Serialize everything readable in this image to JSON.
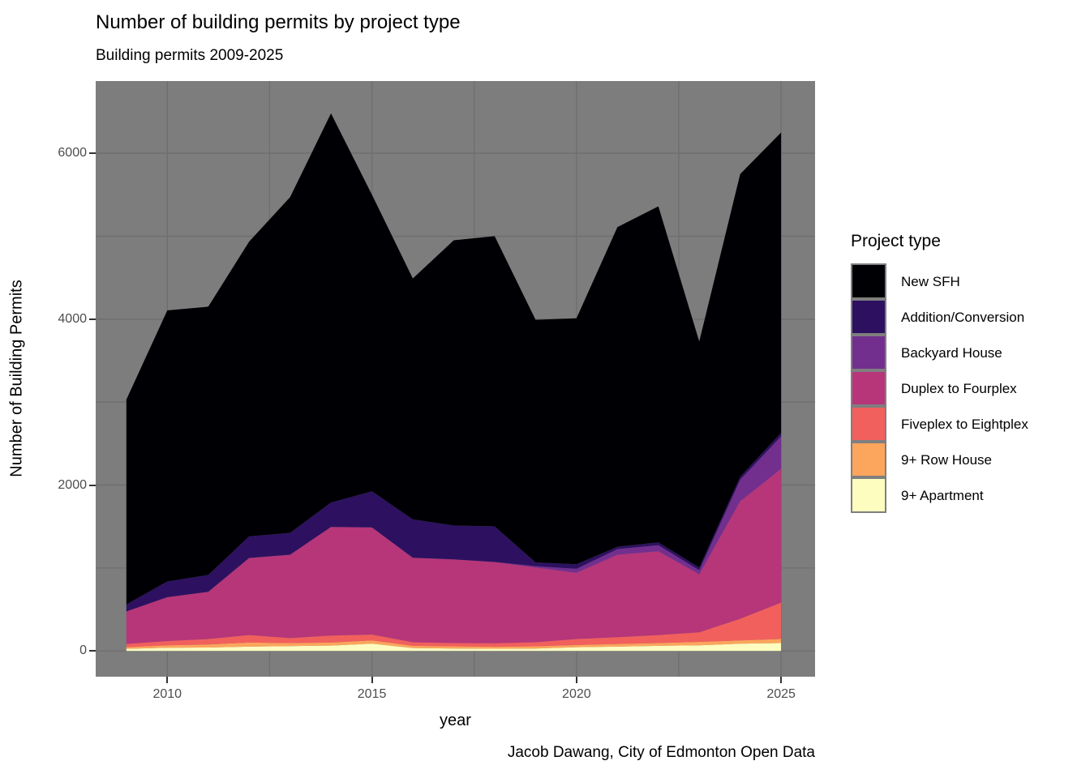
{
  "header": {
    "title": "Number of building permits by project type",
    "subtitle": "Building permits 2009-2025"
  },
  "caption": "Jacob Dawang, City of Edmonton Open Data",
  "legend": {
    "title": "Project type",
    "position": "right"
  },
  "axes": {
    "x_title": "year",
    "y_title": "Number of Building Permits",
    "x_ticks": [
      2010,
      2015,
      2020,
      2025
    ],
    "x_minor": [
      2012.5,
      2017.5,
      2022.5
    ],
    "y_ticks": [
      0,
      2000,
      4000,
      6000
    ],
    "y_minor": [
      1000,
      3000,
      5000
    ]
  },
  "colors": {
    "panel_background": "#7D7D7D",
    "gridline": "#6E6E6E",
    "tick_label": "#4D4D4D",
    "tick_mark": "#333333"
  },
  "chart_data": {
    "type": "area",
    "stacked": true,
    "title": "Number of building permits by project type",
    "subtitle": "Building permits 2009-2025",
    "xlabel": "year",
    "ylabel": "Number of Building Permits",
    "legend_title": "Project type",
    "legend_position": "right",
    "grid": true,
    "x": [
      2009,
      2010,
      2011,
      2012,
      2013,
      2014,
      2015,
      2016,
      2017,
      2018,
      2019,
      2020,
      2021,
      2022,
      2023,
      2024,
      2025
    ],
    "x_range": [
      2008.25,
      2025.83
    ],
    "y_range": [
      -310,
      6870
    ],
    "series": [
      {
        "name": "New SFH",
        "color": "#000004",
        "values": [
          2470,
          3267,
          3234,
          3554,
          4046,
          4691,
          3575,
          2904,
          3438,
          3498,
          2925,
          2964,
          3853,
          4050,
          2723,
          3650,
          3621
        ]
      },
      {
        "name": "Addition/Conversion",
        "color": "#2D1160",
        "values": [
          84,
          190,
          203,
          260,
          264,
          294,
          436,
          462,
          408,
          430,
          45,
          56,
          29,
          36,
          33,
          35,
          42
        ]
      },
      {
        "name": "Backyard House",
        "color": "#722F8E",
        "values": [
          0,
          0,
          0,
          0,
          0,
          0,
          0,
          0,
          0,
          0,
          15,
          49,
          68,
          72,
          49,
          260,
          391
        ]
      },
      {
        "name": "Duplex to Fourplex",
        "color": "#B63679",
        "values": [
          391,
          528,
          569,
          929,
          1005,
          1309,
          1291,
          1019,
          1009,
          979,
          902,
          797,
          994,
          1010,
          700,
          1417,
          1613
        ]
      },
      {
        "name": "Fiveplex to Eightplex",
        "color": "#F1605D",
        "values": [
          39,
          52,
          66,
          91,
          60,
          85,
          71,
          43,
          39,
          43,
          49,
          72,
          81,
          97,
          115,
          261,
          439
        ]
      },
      {
        "name": "9+ Row House",
        "color": "#FCA55C",
        "values": [
          20,
          29,
          36,
          49,
          36,
          36,
          39,
          26,
          27,
          23,
          27,
          26,
          33,
          33,
          42,
          39,
          49
        ]
      },
      {
        "name": "9+ Apartment",
        "color": "#FCFDBF",
        "values": [
          26,
          39,
          42,
          52,
          59,
          65,
          88,
          36,
          29,
          27,
          29,
          46,
          52,
          62,
          68,
          88,
          95
        ]
      }
    ],
    "totals": [
      3030,
      4105,
      4150,
      4935,
      5470,
      6480,
      5500,
      4490,
      4950,
      5000,
      3992,
      4010,
      5110,
      5360,
      3730,
      5750,
      6250
    ]
  }
}
